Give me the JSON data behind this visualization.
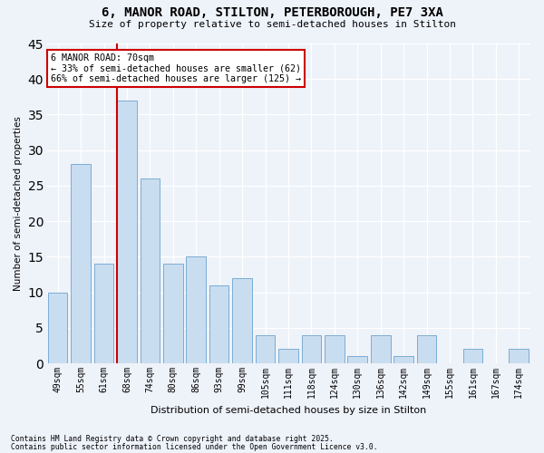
{
  "title1": "6, MANOR ROAD, STILTON, PETERBOROUGH, PE7 3XA",
  "title2": "Size of property relative to semi-detached houses in Stilton",
  "xlabel": "Distribution of semi-detached houses by size in Stilton",
  "ylabel": "Number of semi-detached properties",
  "categories": [
    "49sqm",
    "55sqm",
    "61sqm",
    "68sqm",
    "74sqm",
    "80sqm",
    "86sqm",
    "93sqm",
    "99sqm",
    "105sqm",
    "111sqm",
    "118sqm",
    "124sqm",
    "130sqm",
    "136sqm",
    "142sqm",
    "149sqm",
    "155sqm",
    "161sqm",
    "167sqm",
    "174sqm"
  ],
  "values": [
    10,
    28,
    14,
    37,
    26,
    14,
    15,
    11,
    12,
    4,
    2,
    4,
    4,
    1,
    4,
    1,
    4,
    0,
    2,
    0,
    2
  ],
  "bar_color": "#c9ddf0",
  "bar_edge_color": "#7badd4",
  "vline_index": 3,
  "vline_color": "#cc0000",
  "ylim": [
    0,
    45
  ],
  "yticks": [
    0,
    5,
    10,
    15,
    20,
    25,
    30,
    35,
    40,
    45
  ],
  "annotation_text": "6 MANOR ROAD: 70sqm\n← 33% of semi-detached houses are smaller (62)\n66% of semi-detached houses are larger (125) →",
  "annotation_box_facecolor": "#ffffff",
  "annotation_box_edgecolor": "#cc0000",
  "footer1": "Contains HM Land Registry data © Crown copyright and database right 2025.",
  "footer2": "Contains public sector information licensed under the Open Government Licence v3.0.",
  "background_color": "#eef2f9",
  "grid_color": "#ffffff",
  "fig_width": 6.0,
  "fig_height": 5.0
}
